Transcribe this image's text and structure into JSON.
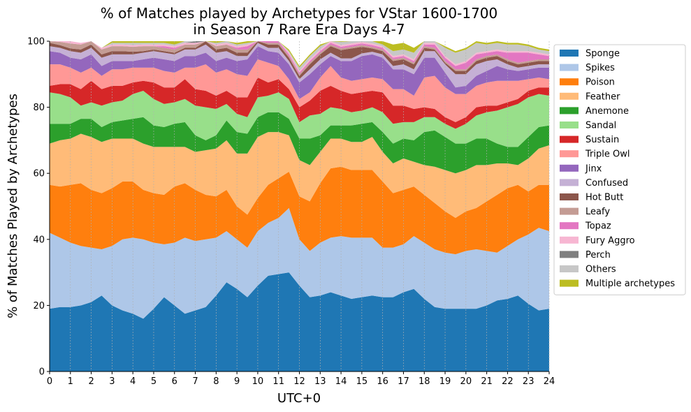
{
  "chart_data": {
    "type": "area",
    "stacked": true,
    "title": "% of Matches played by Archetypes for VStar 1600-1700",
    "subtitle": "in Season 7 Rare Era Days 4-7",
    "xlabel": "UTC+0",
    "ylabel": "% of Matches Played by Archetypes",
    "xlim": [
      0,
      24
    ],
    "ylim": [
      0,
      100
    ],
    "xticks": [
      "0",
      "1",
      "2",
      "3",
      "4",
      "5",
      "6",
      "7",
      "8",
      "9",
      "10",
      "11",
      "12",
      "13",
      "14",
      "15",
      "16",
      "17",
      "18",
      "19",
      "20",
      "21",
      "22",
      "23",
      "24"
    ],
    "yticks": [
      "0",
      "20",
      "40",
      "60",
      "80",
      "100"
    ],
    "grid": "vertical dashed at every hour",
    "legend": "outside right",
    "x": [
      0,
      0.5,
      1,
      1.5,
      2,
      2.5,
      3,
      3.5,
      4,
      4.5,
      5,
      5.5,
      6,
      6.5,
      7,
      7.5,
      8,
      8.5,
      9,
      9.5,
      10,
      10.5,
      11,
      11.5,
      12,
      12.5,
      13,
      13.5,
      14,
      14.5,
      15,
      15.5,
      16,
      16.5,
      17,
      17.5,
      18,
      18.5,
      19,
      19.5,
      20,
      20.5,
      21,
      21.5,
      22,
      22.5,
      23,
      23.5,
      24
    ],
    "series": [
      {
        "name": "Sponge",
        "color": "#1f77b4",
        "values": [
          19,
          19.5,
          19.5,
          20,
          21,
          23,
          20,
          18.5,
          17.5,
          16,
          19,
          22.5,
          20,
          17.5,
          18.5,
          19.5,
          23,
          27,
          25,
          22.5,
          26,
          29,
          29.5,
          30,
          26,
          22.5,
          23,
          24,
          23,
          22,
          22.5,
          23,
          22.5,
          22.5,
          24,
          25,
          22,
          19.5,
          19,
          19,
          19,
          19,
          20,
          21.5,
          22,
          23,
          20.5,
          18.5,
          19
        ]
      },
      {
        "name": "Spikes",
        "color": "#aec7e8",
        "values": [
          23,
          21,
          19.5,
          18,
          16.5,
          14,
          18,
          21.5,
          23,
          24,
          20,
          16,
          19,
          23,
          21,
          20.5,
          17.5,
          15.5,
          15,
          15,
          16.5,
          16,
          17,
          19.5,
          14,
          14,
          16,
          16.5,
          18,
          18.5,
          18,
          17.5,
          15,
          15,
          14.5,
          16,
          17,
          17.5,
          17,
          16.5,
          17.5,
          18,
          16.5,
          14.5,
          16,
          17,
          21,
          25,
          23.5
        ]
      },
      {
        "name": "Poison",
        "color": "#ff7f0e",
        "values": [
          14.5,
          15.5,
          17.5,
          19,
          17.5,
          17,
          17.5,
          17.5,
          17,
          15,
          15,
          15,
          17,
          16.5,
          15.5,
          13.5,
          12.5,
          12.5,
          10,
          10,
          10,
          11.5,
          12,
          11,
          13,
          15,
          18,
          21,
          21,
          20.5,
          20.5,
          20.5,
          20,
          16.5,
          16.5,
          15,
          14.5,
          14,
          12.5,
          11,
          12,
          12.5,
          15,
          17.5,
          17.5,
          16.5,
          13,
          13,
          14
        ]
      },
      {
        "name": "Feather",
        "color": "#ffbb78",
        "values": [
          12.5,
          14,
          14,
          15,
          16,
          15.5,
          15,
          13,
          13,
          14,
          14,
          14.5,
          12,
          11,
          11.5,
          13.5,
          14.5,
          15,
          16,
          18.5,
          18.5,
          16,
          14,
          11,
          11,
          11,
          9.5,
          9,
          8.5,
          8.5,
          8.5,
          10,
          9,
          9,
          9.5,
          7.5,
          9,
          11,
          12.5,
          13.5,
          12.5,
          13,
          11,
          9.5,
          7.5,
          6,
          10,
          11,
          12
        ]
      },
      {
        "name": "Anemone",
        "color": "#2ca02c",
        "values": [
          6,
          5,
          4.5,
          4.5,
          5.5,
          4.5,
          5,
          5.5,
          6,
          8,
          6.5,
          6,
          7,
          7.5,
          5,
          3,
          4,
          6,
          6.5,
          6,
          6,
          6,
          6,
          5,
          6.5,
          8,
          5,
          4,
          4,
          5,
          5.5,
          4.5,
          6,
          6,
          6,
          6.5,
          10,
          11,
          10,
          9,
          8,
          8,
          8,
          6,
          5,
          5.5,
          6.5,
          6.5,
          6
        ]
      },
      {
        "name": "Sandal",
        "color": "#98df8a",
        "values": [
          9.5,
          9,
          8,
          4,
          5,
          6.5,
          6,
          6,
          7.5,
          8,
          8,
          7,
          6.5,
          7,
          9,
          10,
          8,
          5,
          5.5,
          5,
          6,
          5,
          6,
          6,
          5,
          7,
          6.5,
          5.5,
          5,
          4,
          4,
          4.5,
          6,
          6,
          5,
          5.5,
          4.5,
          4,
          4,
          4.5,
          6,
          7,
          8,
          10,
          12,
          13,
          12,
          10,
          9
        ]
      },
      {
        "name": "Sustain",
        "color": "#d62728",
        "values": [
          2,
          3,
          4,
          5,
          6.5,
          5,
          5,
          4.5,
          3.5,
          3,
          5,
          5,
          4.5,
          6,
          5,
          5,
          4,
          4,
          5,
          6,
          6,
          4,
          4,
          3,
          4.5,
          4.5,
          7,
          6.5,
          5.5,
          5.5,
          5.5,
          5,
          6,
          5.5,
          5,
          4,
          3,
          2.5,
          2,
          2,
          2,
          2.5,
          2,
          1.5,
          1.5,
          1.5,
          2,
          2,
          2.5
        ]
      },
      {
        "name": "Triple Owl",
        "color": "#ff9896",
        "values": [
          6.5,
          6,
          5,
          5,
          4,
          4,
          5,
          5,
          4.5,
          4,
          4.5,
          5,
          4.5,
          3.5,
          6.5,
          8,
          7,
          6.5,
          7,
          6.5,
          5.5,
          6,
          4,
          3,
          2.5,
          2.5,
          4,
          6,
          4,
          4,
          4,
          4,
          4,
          5,
          5,
          4,
          9,
          10,
          9,
          8.5,
          7,
          6.5,
          7,
          7.5,
          6.5,
          5.5,
          3.5,
          3,
          2.5
        ]
      },
      {
        "name": "Jinx",
        "color": "#9467bd",
        "values": [
          4,
          3.5,
          3,
          4,
          4,
          3,
          2.5,
          2.5,
          2,
          2.5,
          3,
          3.5,
          3.5,
          3.5,
          3.5,
          3.5,
          3.5,
          3.5,
          4,
          5,
          4,
          3.5,
          4,
          4.5,
          5,
          5.5,
          4,
          3,
          5,
          6,
          7,
          7,
          6.5,
          6,
          6,
          6.5,
          6,
          5.5,
          4.5,
          2,
          2.5,
          3,
          3.5,
          4.5,
          3.5,
          3,
          3,
          3,
          3.5
        ]
      },
      {
        "name": "Confused",
        "color": "#c5b0d5",
        "values": [
          1.5,
          1.5,
          2,
          2,
          2,
          2.5,
          2,
          2,
          2,
          2,
          2,
          2,
          2,
          2,
          2,
          2.5,
          2.5,
          2,
          1.5,
          1,
          1,
          1,
          1.5,
          1,
          1,
          1.5,
          1.5,
          1,
          0.8,
          0.8,
          0.8,
          0.8,
          1,
          1,
          1.5,
          1.5,
          2,
          2,
          2.5,
          4,
          3.5,
          3.5,
          3,
          2,
          1.5,
          1,
          1,
          1,
          1
        ]
      },
      {
        "name": "Hot Butt",
        "color": "#8c564b",
        "values": [
          1,
          0.8,
          0.8,
          1,
          1,
          1,
          1,
          1,
          0.8,
          0.5,
          0.5,
          0.5,
          0.5,
          0.5,
          0.5,
          1,
          1,
          1,
          1,
          1,
          1,
          1,
          1,
          1,
          1,
          1.5,
          1.5,
          2,
          2.5,
          3,
          2,
          1,
          1,
          1.5,
          1.5,
          1.5,
          1,
          0.5,
          0.5,
          1,
          1,
          1,
          1,
          1,
          1,
          1,
          1,
          1,
          1
        ]
      },
      {
        "name": "Leafy",
        "color": "#c49c94",
        "values": [
          0.5,
          1,
          1.5,
          1.5,
          1,
          1.5,
          1.5,
          1.5,
          1.5,
          1.5,
          1,
          1,
          1,
          1,
          1,
          1,
          1,
          1,
          1,
          1,
          0.5,
          0.5,
          0.5,
          0.5,
          0.5,
          0.5,
          0.5,
          0.5,
          0.5,
          0.5,
          0.5,
          0.5,
          0.5,
          0.5,
          0.5,
          0.5,
          0.5,
          0.5,
          0.5,
          0.5,
          0.5,
          0.5,
          0.5,
          0.5,
          0.5,
          0.5,
          0.5,
          0.5,
          0.5
        ]
      },
      {
        "name": "Topaz",
        "color": "#e377c2",
        "values": [
          0,
          0,
          0,
          0,
          0,
          0,
          0,
          0,
          0,
          0,
          0,
          0.5,
          0.5,
          0,
          0,
          0,
          0,
          0,
          0.5,
          1,
          0.5,
          0.5,
          0.5,
          0.5,
          0.5,
          0.5,
          0.5,
          0.5,
          0.5,
          0.5,
          0.5,
          0.5,
          0.5,
          0.5,
          0.5,
          0.5,
          0.5,
          1,
          1,
          1,
          2,
          1.5,
          1,
          1,
          2,
          3,
          2.5,
          1.5,
          1
        ]
      },
      {
        "name": "Fury Aggro",
        "color": "#f7b6d2",
        "values": [
          0,
          0.5,
          1,
          0.5,
          0.5,
          0.5,
          0.5,
          0.5,
          0.5,
          0.5,
          0.5,
          0.5,
          0.5,
          0.5,
          0.5,
          0.5,
          0.5,
          0.5,
          0.5,
          0.5,
          0.5,
          0.5,
          0.5,
          0.5,
          0.5,
          0.5,
          0.5,
          0.5,
          0.5,
          0.5,
          0.5,
          0.5,
          0.5,
          0.5,
          0.5,
          0.5,
          0.5,
          0.5,
          0.5,
          0.5,
          0.5,
          0.5,
          0.5,
          0.5,
          0.5,
          0.5,
          0.5,
          0.5,
          0.5
        ]
      },
      {
        "name": "Perch",
        "color": "#7f7f7f",
        "values": [
          0,
          0,
          0,
          0,
          0,
          0,
          0,
          0,
          0,
          0,
          0,
          0,
          0,
          0,
          0.5,
          0.5,
          0,
          0,
          0,
          0,
          0,
          0,
          0,
          0,
          0,
          0,
          0,
          0,
          0,
          0,
          0,
          0,
          0,
          0,
          0,
          0,
          0,
          0,
          0,
          0,
          0,
          0,
          0,
          0,
          0,
          0,
          0,
          0,
          0
        ]
      },
      {
        "name": "Others",
        "color": "#c7c7c7",
        "values": [
          0,
          0,
          0,
          0,
          0,
          0,
          0.5,
          0.5,
          0.7,
          0.5,
          0.5,
          0.5,
          0.5,
          0.5,
          0.5,
          0.5,
          0.5,
          0.5,
          0.5,
          0.5,
          0.5,
          0.5,
          0.5,
          0.5,
          1,
          1,
          1,
          1,
          1,
          1,
          1,
          1,
          0.5,
          1.5,
          1.5,
          2,
          2,
          2.5,
          2.5,
          3.5,
          3.5,
          3,
          2,
          2,
          2,
          2,
          1.5,
          1,
          1
        ]
      },
      {
        "name": "Multiple archetypes",
        "color": "#bcbd22",
        "values": [
          0,
          0,
          0,
          0,
          0,
          0,
          0.5,
          0.5,
          0.5,
          0.5,
          0.5,
          1,
          1,
          1,
          0.5,
          0.5,
          0.5,
          0.5,
          0.5,
          0.5,
          0.5,
          0.5,
          0.5,
          0.5,
          0.5,
          0.5,
          0.5,
          0.5,
          0.5,
          0.5,
          0.5,
          0.5,
          1,
          2,
          2,
          1.5,
          0.5,
          0.5,
          0.5,
          0.5,
          0.5,
          0.5,
          0.5,
          0.5,
          0.5,
          0.5,
          0.5,
          0.5,
          0.5
        ]
      }
    ]
  }
}
